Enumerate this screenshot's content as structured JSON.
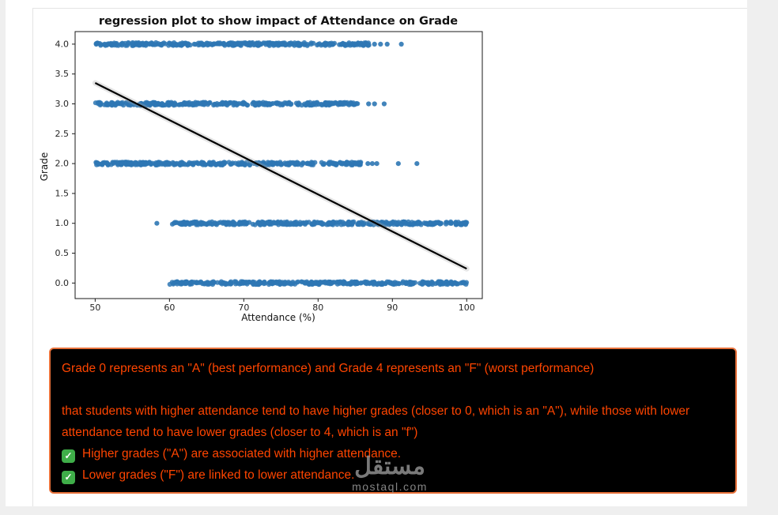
{
  "page": {
    "watermark": {
      "arabic": "مستقل",
      "latin": "mostaql.com"
    }
  },
  "chart_data": {
    "type": "scatter",
    "title": "regression plot to show impact of Attendance on Grade",
    "xlabel": "Attendance (%)",
    "ylabel": "Grade",
    "xlim": [
      47.3,
      102.1
    ],
    "ylim": [
      -0.26,
      4.21
    ],
    "xticks": [
      50,
      60,
      70,
      80,
      90,
      100
    ],
    "yticks": [
      0.0,
      0.5,
      1.0,
      1.5,
      2.0,
      2.5,
      3.0,
      3.5,
      4.0
    ],
    "grid": false,
    "legend": "none",
    "point_color": "#2e77b4",
    "point_radius": 3.1,
    "bands": [
      {
        "grade": 4.0,
        "attendance_range": [
          50.0,
          87.0
        ],
        "outliers": [
          87.6,
          88.4,
          89.3,
          91.2
        ]
      },
      {
        "grade": 3.0,
        "attendance_range": [
          50.0,
          85.6
        ],
        "outliers": [
          86.8,
          87.6,
          88.9
        ]
      },
      {
        "grade": 2.0,
        "attendance_range": [
          50.0,
          85.9
        ],
        "outliers": [
          86.7,
          87.3,
          87.9,
          90.8,
          93.3
        ]
      },
      {
        "grade": 1.0,
        "attendance_range": [
          60.3,
          100.0
        ],
        "outliers": [
          58.3
        ]
      },
      {
        "grade": 0.0,
        "attendance_range": [
          60.0,
          100.0
        ],
        "outliers": []
      }
    ],
    "regression_line": {
      "x1": 50,
      "y1": 3.35,
      "x2": 100,
      "y2": 0.24,
      "color": "#000000",
      "ci_color": "#aaaaaa"
    }
  },
  "note": {
    "background": "#000000",
    "border_color": "#e8713a",
    "text_color": "#ff4500",
    "check_color": "#3fae49",
    "lines": [
      {
        "text": "Grade 0 represents an \"A\" (best performance) and Grade 4 represents an \"F\" (worst performance)",
        "check": false,
        "gap_after": true
      },
      {
        "text": "that students with higher attendance tend to have higher grades (closer to 0, which is an \"A\"), while those with lower attendance tend to have lower grades (closer to 4, which is an \"f\")",
        "check": false,
        "gap_after": false
      },
      {
        "text": "Higher grades (\"A\") are associated with higher attendance.",
        "check": true,
        "gap_after": false
      },
      {
        "text": "Lower grades (\"F\") are linked to lower attendance.",
        "check": true,
        "gap_after": false
      }
    ]
  }
}
